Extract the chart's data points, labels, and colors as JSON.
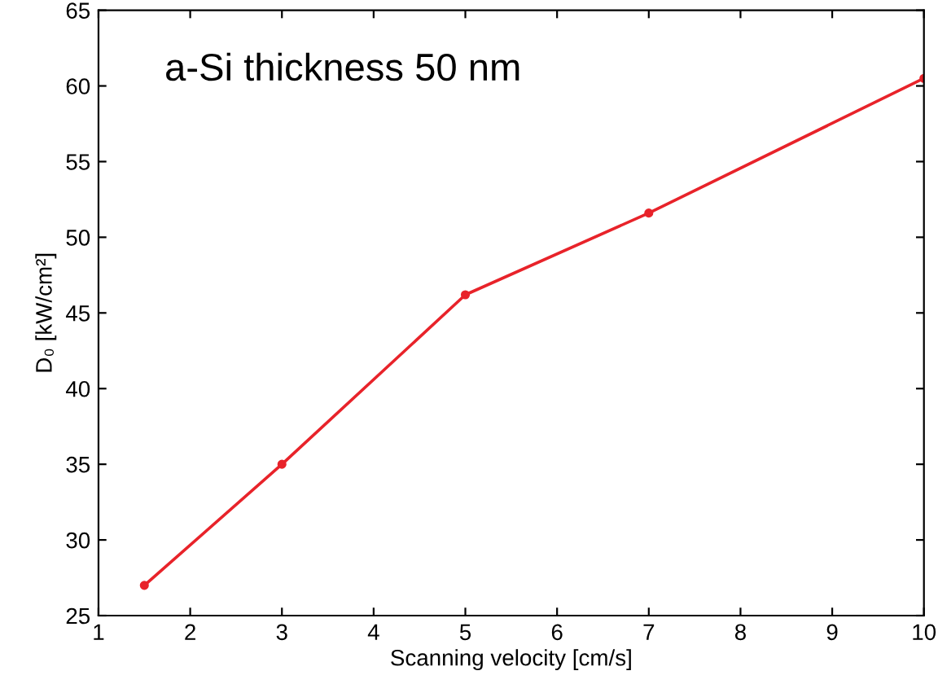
{
  "chart_data": {
    "type": "line",
    "x": [
      1.5,
      3,
      5,
      7,
      10
    ],
    "series": [
      {
        "color": "#e8232a",
        "values": [
          27,
          35,
          46.2,
          51.6,
          60.5
        ]
      }
    ],
    "xlabel": "Scanning velocity [cm/s]",
    "ylabel": "D₀ [kW/cm²]",
    "annotations": [
      "a-Si thickness 50 nm"
    ],
    "xlim": [
      1,
      10
    ],
    "ylim": [
      25,
      65
    ],
    "xticks": [
      1,
      2,
      3,
      4,
      5,
      6,
      7,
      8,
      9,
      10
    ],
    "yticks": [
      25,
      30,
      35,
      40,
      45,
      50,
      55,
      60,
      65
    ],
    "marker": "circle",
    "line_style": "solid",
    "grid": false,
    "legend": false
  }
}
